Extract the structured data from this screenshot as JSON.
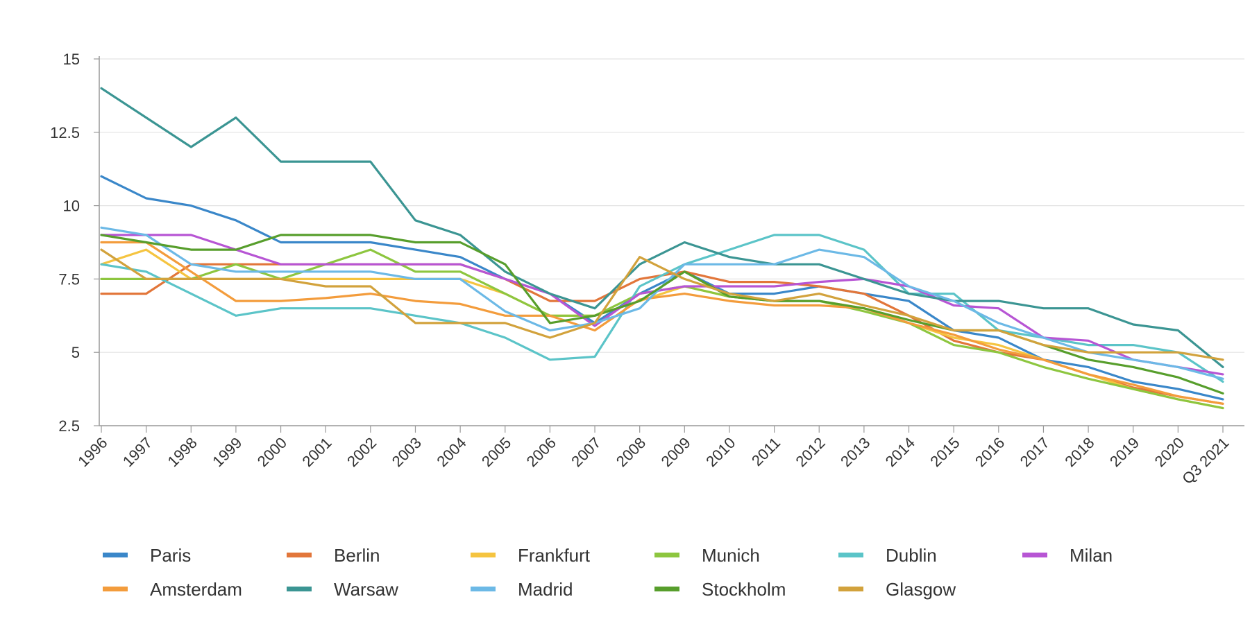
{
  "chart_data": {
    "type": "line",
    "title": "",
    "xlabel": "",
    "ylabel": "",
    "ylim": [
      2.5,
      15
    ],
    "yticks": [
      2.5,
      5,
      7.5,
      10,
      12.5,
      15
    ],
    "ytick_labels": [
      "2.5",
      "5",
      "7.5",
      "10",
      "12.5",
      "15"
    ],
    "grid": "horizontal",
    "legend_position": "bottom",
    "categories": [
      "1996",
      "1997",
      "1998",
      "1999",
      "2000",
      "2001",
      "2002",
      "2003",
      "2004",
      "2005",
      "2006",
      "2007",
      "2008",
      "2009",
      "2010",
      "2011",
      "2012",
      "2013",
      "2014",
      "2015",
      "2016",
      "2017",
      "2018",
      "2019",
      "2020",
      "Q3 2021"
    ],
    "series": [
      {
        "name": "Paris",
        "color": "#3a87c9",
        "values": [
          11.0,
          10.25,
          10.0,
          9.5,
          8.75,
          8.75,
          8.75,
          8.5,
          8.25,
          7.5,
          7.0,
          6.0,
          7.0,
          7.75,
          7.0,
          7.0,
          7.25,
          7.0,
          6.75,
          5.75,
          5.5,
          4.75,
          4.5,
          4.0,
          3.75,
          3.4
        ]
      },
      {
        "name": "Berlin",
        "color": "#e2763a",
        "values": [
          7.0,
          7.0,
          8.0,
          8.0,
          8.0,
          8.0,
          8.0,
          8.0,
          8.0,
          7.5,
          6.75,
          6.75,
          7.5,
          7.75,
          7.4,
          7.4,
          7.25,
          7.0,
          6.25,
          5.4,
          5.0,
          4.75,
          4.25,
          3.8,
          3.5,
          3.25
        ]
      },
      {
        "name": "Frankfurt",
        "color": "#f5c440",
        "values": [
          8.0,
          8.5,
          7.5,
          7.5,
          7.5,
          7.5,
          7.5,
          7.5,
          7.5,
          7.0,
          6.25,
          6.25,
          6.75,
          7.25,
          6.9,
          6.75,
          6.75,
          6.5,
          6.0,
          5.5,
          5.25,
          4.75,
          4.25,
          3.75,
          3.4,
          3.1
        ]
      },
      {
        "name": "Munich",
        "color": "#8dc63f",
        "values": [
          7.5,
          7.5,
          7.5,
          8.0,
          7.5,
          8.0,
          8.5,
          7.75,
          7.75,
          7.0,
          6.25,
          6.25,
          7.0,
          7.25,
          6.9,
          6.75,
          6.75,
          6.4,
          6.0,
          5.25,
          5.0,
          4.5,
          4.1,
          3.75,
          3.4,
          3.1
        ]
      },
      {
        "name": "Dublin",
        "color": "#5bc4c8",
        "values": [
          8.0,
          7.75,
          7.0,
          6.25,
          6.5,
          6.5,
          6.5,
          6.25,
          6.0,
          5.5,
          4.75,
          4.85,
          7.25,
          8.0,
          8.5,
          9.0,
          9.0,
          8.5,
          7.0,
          7.0,
          5.75,
          5.5,
          5.25,
          5.25,
          5.0,
          4.0
        ]
      },
      {
        "name": "Milan",
        "color": "#b755d4",
        "values": [
          9.0,
          9.0,
          9.0,
          8.5,
          8.0,
          8.0,
          8.0,
          8.0,
          8.0,
          7.5,
          7.0,
          5.9,
          7.0,
          7.25,
          7.25,
          7.25,
          7.4,
          7.5,
          7.25,
          6.6,
          6.5,
          5.5,
          5.4,
          4.75,
          4.5,
          4.25
        ]
      },
      {
        "name": "Amsterdam",
        "color": "#f39c3c",
        "values": [
          8.75,
          8.75,
          7.75,
          6.75,
          6.75,
          6.85,
          7.0,
          6.75,
          6.65,
          6.25,
          6.25,
          5.75,
          6.8,
          7.0,
          6.75,
          6.6,
          6.6,
          6.5,
          6.0,
          5.6,
          5.1,
          4.75,
          4.25,
          3.9,
          3.5,
          3.25
        ]
      },
      {
        "name": "Warsaw",
        "color": "#3b9593",
        "values": [
          14.0,
          13.0,
          12.0,
          13.0,
          11.5,
          11.5,
          11.5,
          9.5,
          9.0,
          7.75,
          7.0,
          6.5,
          8.0,
          8.75,
          8.25,
          8.0,
          8.0,
          7.5,
          7.0,
          6.75,
          6.75,
          6.5,
          6.5,
          5.95,
          5.75,
          4.5
        ]
      },
      {
        "name": "Madrid",
        "color": "#6cb9e6",
        "values": [
          9.25,
          9.0,
          8.0,
          7.75,
          7.75,
          7.75,
          7.75,
          7.5,
          7.5,
          6.4,
          5.75,
          6.0,
          6.5,
          8.0,
          8.0,
          8.0,
          8.5,
          8.25,
          7.25,
          6.75,
          6.0,
          5.5,
          5.0,
          4.75,
          4.5,
          4.1
        ]
      },
      {
        "name": "Stockholm",
        "color": "#579e2c",
        "values": [
          9.0,
          8.75,
          8.5,
          8.5,
          9.0,
          9.0,
          9.0,
          8.75,
          8.75,
          8.0,
          6.0,
          6.25,
          6.75,
          7.75,
          6.9,
          6.75,
          6.75,
          6.5,
          6.1,
          5.75,
          5.75,
          5.25,
          4.75,
          4.5,
          4.15,
          3.6
        ]
      },
      {
        "name": "Glasgow",
        "color": "#d2a23c",
        "values": [
          8.5,
          7.5,
          7.5,
          7.5,
          7.5,
          7.25,
          7.25,
          6.0,
          6.0,
          6.0,
          5.5,
          6.0,
          8.25,
          7.5,
          7.0,
          6.75,
          7.0,
          6.6,
          6.25,
          5.75,
          5.75,
          5.25,
          5.0,
          5.0,
          5.0,
          4.75
        ]
      }
    ]
  }
}
